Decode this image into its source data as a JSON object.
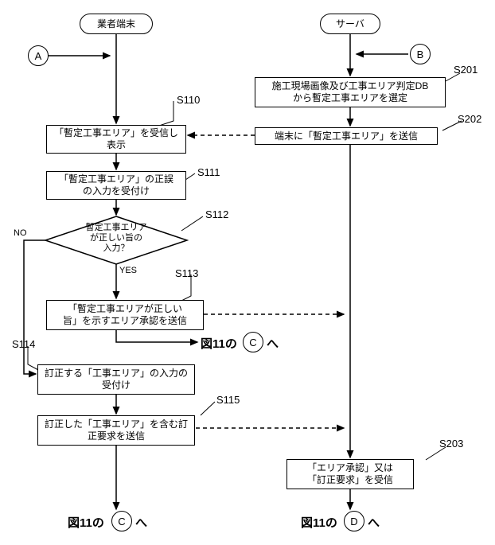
{
  "fontsize_box": 12,
  "fontsize_label": 13,
  "fontsize_ref": 15,
  "font_weight_ref": "bold",
  "colors": {
    "stroke": "#000000",
    "bg": "#ffffff"
  },
  "terminators": {
    "left": "業者端末",
    "right": "サーバ"
  },
  "connectors": {
    "A": "A",
    "B": "B",
    "C1": "C",
    "C2": "C",
    "D": "D"
  },
  "steps": {
    "s201": {
      "label": "S201",
      "text": "施工現場画像及び工事エリア判定DB\nから暫定工事エリアを選定"
    },
    "s202": {
      "label": "S202",
      "text": "端末に「暫定工事エリア」を送信"
    },
    "s110": {
      "label": "S110",
      "text": "「暫定工事エリア」を受信し\n表示"
    },
    "s111": {
      "label": "S111",
      "text": "「暫定工事エリア」の正誤\nの入力を受付け"
    },
    "s112": {
      "label": "S112",
      "text": "暫定工事エリア\nが正しい旨の\n入力？"
    },
    "s113": {
      "label": "S113",
      "text": "「暫定工事エリアが正しい\n旨」を示すエリア承認を送信"
    },
    "s114": {
      "label": "S114",
      "text": "訂正する「工事エリア」の入力の\n受付け"
    },
    "s115": {
      "label": "S115",
      "text": "訂正した「工事エリア」を含む訂\n正要求を送信"
    },
    "s203": {
      "label": "S203",
      "text": "「エリア承認」又は\n「訂正要求」を受信"
    }
  },
  "decision": {
    "yes": "YES",
    "no": "NO"
  },
  "refs": {
    "leftC": "図11の",
    "leftChe": "へ",
    "rightC": "図11の",
    "rightChe": "へ",
    "bottomLeft": "図11の",
    "bottomLeftHe": "へ",
    "bottomRight": "図11の",
    "bottomRightHe": "へ"
  }
}
